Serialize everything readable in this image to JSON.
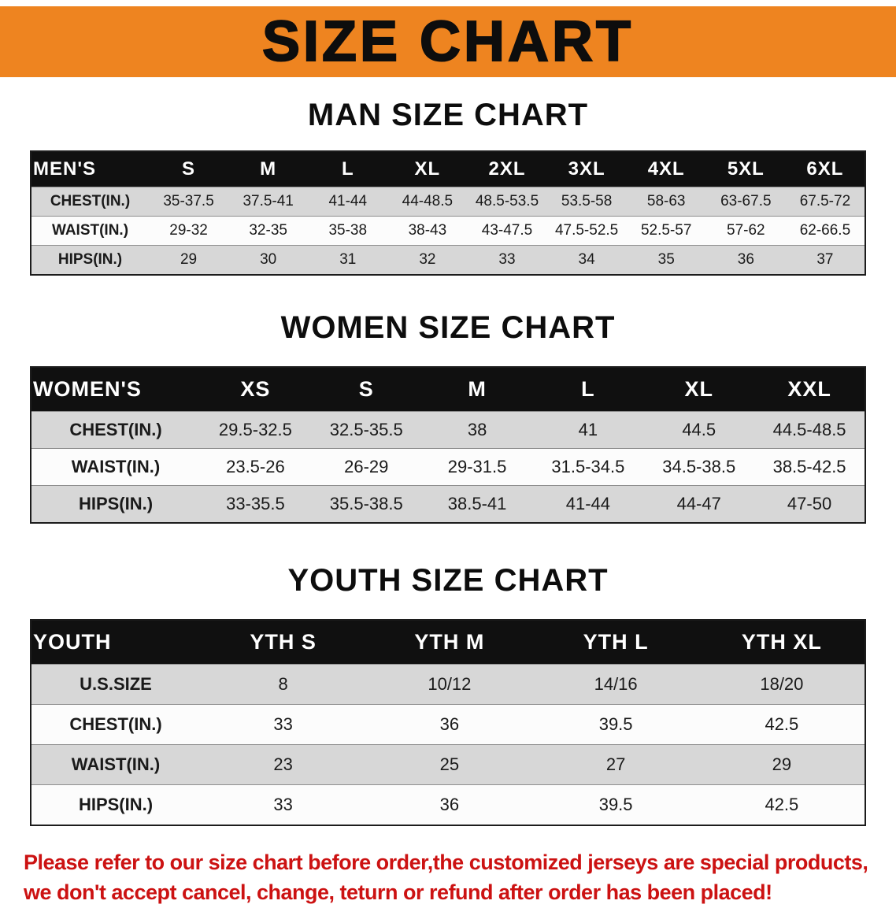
{
  "banner": {
    "title": "SIZE CHART",
    "bg_color": "#ee8420",
    "text_color": "#0d0d0d"
  },
  "sections": [
    {
      "id": "men",
      "title": "MAN SIZE CHART",
      "header": [
        "MEN'S",
        "S",
        "M",
        "L",
        "XL",
        "2XL",
        "3XL",
        "4XL",
        "5XL",
        "6XL"
      ],
      "rows": [
        {
          "label": "CHEST(IN.)",
          "values": [
            "35-37.5",
            "37.5-41",
            "41-44",
            "44-48.5",
            "48.5-53.5",
            "53.5-58",
            "58-63",
            "63-67.5",
            "67.5-72"
          ]
        },
        {
          "label": "WAIST(IN.)",
          "values": [
            "29-32",
            "32-35",
            "35-38",
            "38-43",
            "43-47.5",
            "47.5-52.5",
            "52.5-57",
            "57-62",
            "62-66.5"
          ]
        },
        {
          "label": "HIPS(IN.)",
          "values": [
            "29",
            "30",
            "31",
            "32",
            "33",
            "34",
            "35",
            "36",
            "37"
          ]
        }
      ]
    },
    {
      "id": "women",
      "title": "WOMEN SIZE CHART",
      "header": [
        "WOMEN'S",
        "XS",
        "S",
        "M",
        "L",
        "XL",
        "XXL"
      ],
      "rows": [
        {
          "label": "CHEST(IN.)",
          "values": [
            "29.5-32.5",
            "32.5-35.5",
            "38",
            "41",
            "44.5",
            "44.5-48.5"
          ]
        },
        {
          "label": "WAIST(IN.)",
          "values": [
            "23.5-26",
            "26-29",
            "29-31.5",
            "31.5-34.5",
            "34.5-38.5",
            "38.5-42.5"
          ]
        },
        {
          "label": "HIPS(IN.)",
          "values": [
            "33-35.5",
            "35.5-38.5",
            "38.5-41",
            "41-44",
            "44-47",
            "47-50"
          ]
        }
      ]
    },
    {
      "id": "youth",
      "title": "YOUTH SIZE CHART",
      "header": [
        "YOUTH",
        "YTH S",
        "YTH M",
        "YTH L",
        "YTH XL"
      ],
      "rows": [
        {
          "label": "U.S.SIZE",
          "values": [
            "8",
            "10/12",
            "14/16",
            "18/20"
          ]
        },
        {
          "label": "CHEST(IN.)",
          "values": [
            "33",
            "36",
            "39.5",
            "42.5"
          ]
        },
        {
          "label": "WAIST(IN.)",
          "values": [
            "23",
            "25",
            "27",
            "29"
          ]
        },
        {
          "label": "HIPS(IN.)",
          "values": [
            "33",
            "36",
            "39.5",
            "42.5"
          ]
        }
      ]
    }
  ],
  "disclaimer": {
    "color": "#cc1212",
    "lines": [
      "Please refer to our size chart before order,the customized jerseys are special products,",
      "we don't accept cancel, change, teturn or refund after order has been placed!"
    ]
  }
}
